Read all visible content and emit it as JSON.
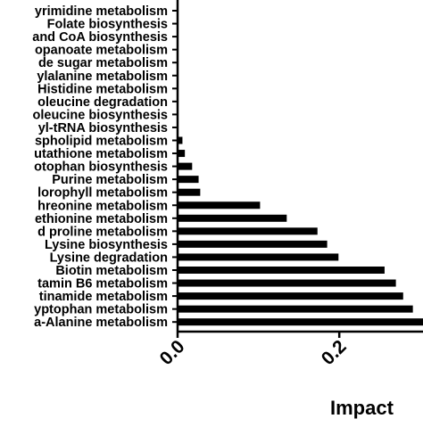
{
  "chart_data": {
    "type": "bar",
    "orientation": "horizontal",
    "title": "",
    "xlabel": "Impact",
    "ylabel": "",
    "xlim": [
      0.0,
      0.3
    ],
    "x_ticks": [
      0.0,
      0.2
    ],
    "x_tick_labels": [
      "0.0",
      "0.2"
    ],
    "grid": false,
    "bar_color": "#000000",
    "categories": [
      "yrimidine metabolism",
      "Folate biosynthesis",
      "and CoA biosynthesis",
      "opanoate metabolism",
      "de sugar metabolism",
      "ylalanine metabolism",
      "Histidine metabolism",
      "oleucine degradation",
      "oleucine biosynthesis",
      "yl-tRNA biosynthesis",
      "spholipid metabolism",
      "utathione metabolism",
      "otophan biosynthesis",
      "Purine metabolism",
      "lorophyll metabolism",
      "hreonine metabolism",
      "ethionine metabolism",
      "d proline metabolism",
      "Lysine biosynthesis",
      "Lysine degradation",
      "Biotin metabolism",
      "tamin B6 metabolism",
      "tinamide metabolism",
      "yptophan metabolism",
      "a-Alanine metabolism"
    ],
    "values": [
      0,
      0,
      0,
      0,
      0,
      0,
      0,
      0,
      0,
      0,
      0.006,
      0.009,
      0.018,
      0.026,
      0.028,
      0.102,
      0.135,
      0.173,
      0.185,
      0.199,
      0.256,
      0.27,
      0.279,
      0.291,
      0.305
    ]
  }
}
